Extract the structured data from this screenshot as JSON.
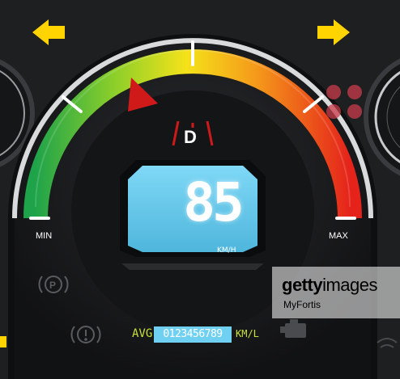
{
  "gauge": {
    "min_label": "MIN",
    "max_label": "MAX",
    "gear": "D",
    "needle_fraction": 0.27
  },
  "lcd": {
    "speed": "85",
    "unit": "KM/H"
  },
  "odometer": {
    "label": "AVG",
    "value": "0123456789",
    "unit": "KM/L"
  },
  "indicators": {
    "left_turn": "left-arrow-icon",
    "right_turn": "right-arrow-icon",
    "parking": "parking-brake-icon",
    "brake_warning": "brake-warning-icon",
    "engine": "engine-check-icon"
  },
  "watermark": {
    "brand_bold": "getty",
    "brand_light": "images",
    "author": "MyFortis"
  },
  "colors": {
    "arrow": "#ffd400",
    "lcd": "#6fd0f2",
    "needle": "#d01a1a",
    "odo_text": "#c7e23a"
  }
}
